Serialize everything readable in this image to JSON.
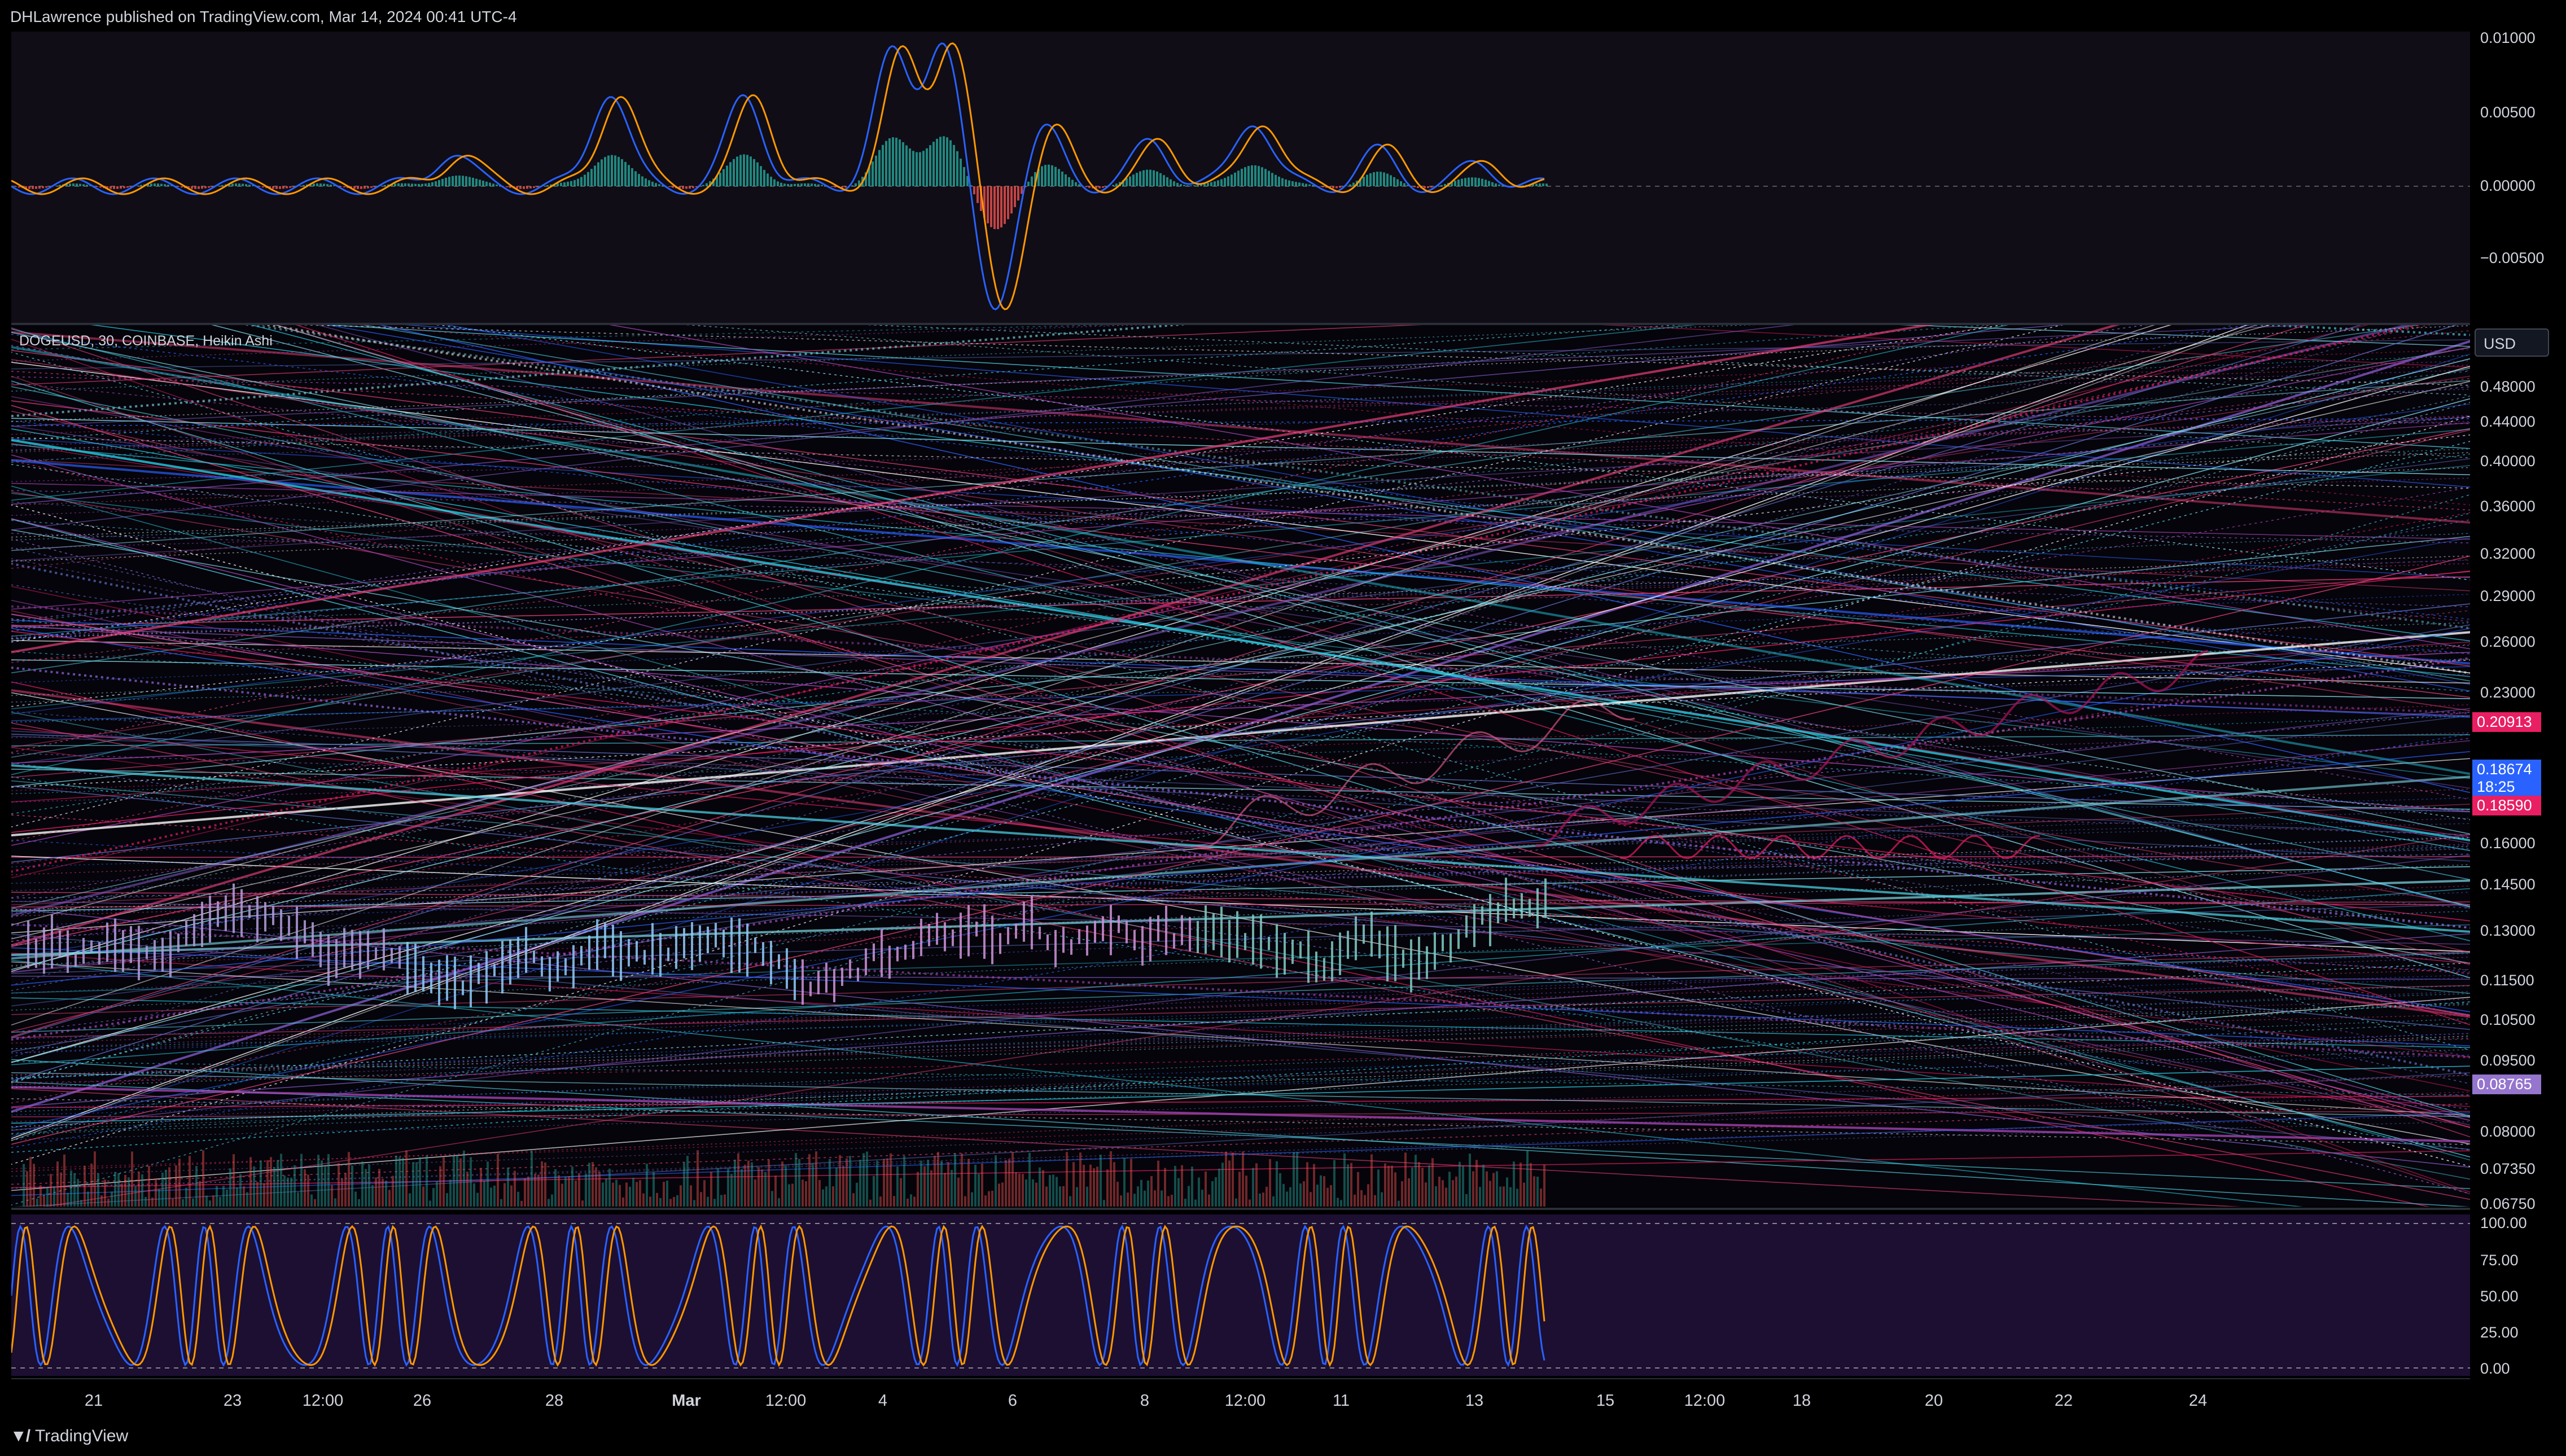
{
  "header": {
    "publisher_line": "DHLawrence published on TradingView.com, Mar 14, 2024 00:41 UTC-4"
  },
  "chart": {
    "legend": "DOGEUSD, 30, COINBASE, Heikin Ashi",
    "currency_button": "USD"
  },
  "price_axis": {
    "ticks": [
      "0.48000",
      "0.44000",
      "0.40000",
      "0.36000",
      "0.32000",
      "0.29000",
      "0.26000",
      "0.23000",
      "0.16000",
      "0.14500",
      "0.13000",
      "0.11500",
      "0.10500",
      "0.09500",
      "0.08000",
      "0.07350",
      "0.06750"
    ],
    "tags": [
      {
        "label": "0.20913",
        "color": "#e91e63"
      },
      {
        "label": "0.18674",
        "sub": "18:25",
        "color": "#2962ff"
      },
      {
        "label": "0.18590",
        "color": "#e91e63"
      },
      {
        "label": "0.08765",
        "color": "#9575cd"
      }
    ]
  },
  "macd_axis": {
    "ticks": [
      "0.01000",
      "0.00500",
      "0.00000",
      "−0.00500"
    ]
  },
  "stoch_axis": {
    "ticks": [
      "100.00",
      "75.00",
      "50.00",
      "25.00",
      "0.00"
    ]
  },
  "time_axis": {
    "labels": [
      "21",
      "23",
      "12:00",
      "26",
      "28",
      "Mar",
      "12:00",
      "4",
      "6",
      "8",
      "12:00",
      "11",
      "13",
      "15",
      "12:00",
      "18",
      "20",
      "22",
      "24"
    ]
  },
  "footer": {
    "brand": "TradingView",
    "logo": "tradingview-logo"
  },
  "colors": {
    "background": "#000000",
    "blue": "#2962ff",
    "orange": "#ff9800",
    "pink": "#e91e63",
    "cyan": "#26c6da",
    "purple": "#9575cd"
  }
}
